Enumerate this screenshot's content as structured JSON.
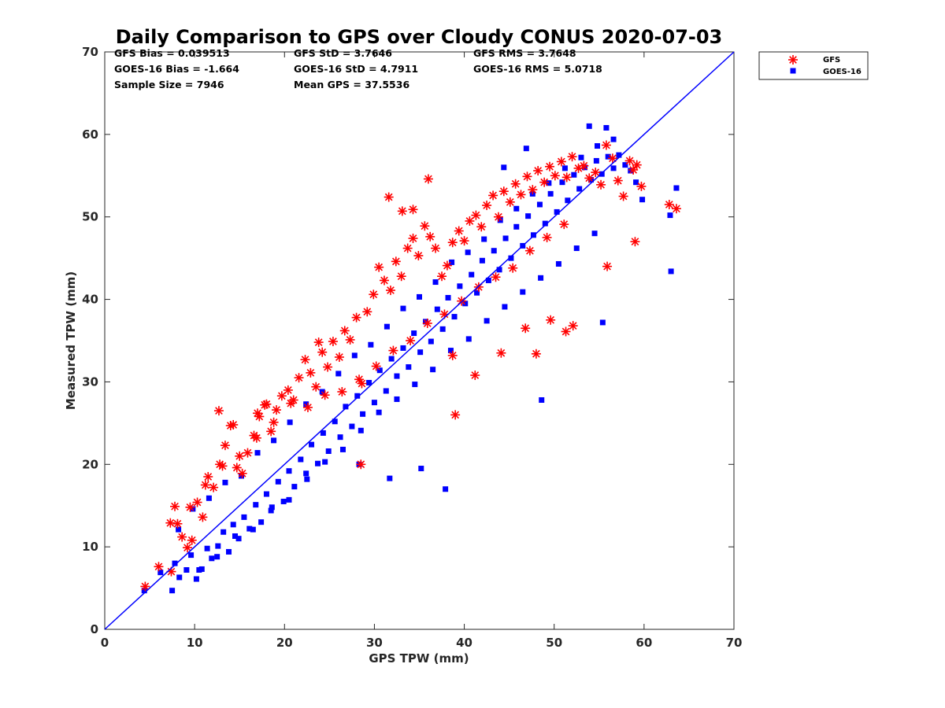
{
  "chart_data": {
    "type": "scatter",
    "title": "Daily Comparison to GPS over Cloudy CONUS 2020-07-03",
    "xlabel": "GPS TPW (mm)",
    "ylabel": "Measured TPW (mm)",
    "xlim": [
      0,
      70
    ],
    "ylim": [
      0,
      70
    ],
    "xticks": [
      "0",
      "10",
      "20",
      "30",
      "40",
      "50",
      "60",
      "70"
    ],
    "yticks": [
      "0",
      "10",
      "20",
      "30",
      "40",
      "50",
      "60",
      "70"
    ],
    "grid": false,
    "legend_position": "outside-top-right",
    "stats": [
      [
        "GFS Bias = 0.039513",
        "GFS StD = 3.7646",
        "GFS RMS = 3.7648"
      ],
      [
        "GOES-16 Bias = -1.664",
        "GOES-16 StD = 4.7911",
        "GOES-16 RMS = 5.0718"
      ],
      [
        "Sample Size = 7946",
        "Mean GPS = 37.5536",
        ""
      ]
    ],
    "reference_line": {
      "x": [
        0,
        70
      ],
      "y": [
        0,
        70
      ],
      "color": "#0000ff"
    },
    "series": [
      {
        "name": "GOES-16",
        "marker": "square",
        "color": "#0000ff",
        "x": [
          4.4,
          6.2,
          7.5,
          7.8,
          8.3,
          9.1,
          9.6,
          10.2,
          10.8,
          11.4,
          11.9,
          12.6,
          13.2,
          13.8,
          14.3,
          14.9,
          15.5,
          16.1,
          16.8,
          17.4,
          18.0,
          18.6,
          19.3,
          19.9,
          20.5,
          21.1,
          21.8,
          22.4,
          23.0,
          23.7,
          24.3,
          24.9,
          25.6,
          26.2,
          26.8,
          27.5,
          28.1,
          28.7,
          29.4,
          30.0,
          30.6,
          31.3,
          31.9,
          32.5,
          33.2,
          33.8,
          34.4,
          35.1,
          35.7,
          36.3,
          37.0,
          37.6,
          38.2,
          38.9,
          39.5,
          40.1,
          40.8,
          41.4,
          42.0,
          42.7,
          43.3,
          43.9,
          44.6,
          45.2,
          45.8,
          46.5,
          47.1,
          47.7,
          48.4,
          49.0,
          49.6,
          50.3,
          50.9,
          51.5,
          52.2,
          52.8,
          53.4,
          54.1,
          54.7,
          55.3,
          56.0,
          56.6,
          57.2,
          57.9,
          58.5,
          59.1,
          59.8,
          62.9,
          63.6,
          8.2,
          9.8,
          11.6,
          13.4,
          15.2,
          17.0,
          18.8,
          20.6,
          22.4,
          24.2,
          26.0,
          27.8,
          29.6,
          31.4,
          33.2,
          35.0,
          36.8,
          38.6,
          40.4,
          42.2,
          44.0,
          45.8,
          47.6,
          49.4,
          51.2,
          53.0,
          54.8,
          56.6,
          10.5,
          12.5,
          14.5,
          16.5,
          18.5,
          20.5,
          22.5,
          24.5,
          26.5,
          28.5,
          30.5,
          32.5,
          34.5,
          36.5,
          38.5,
          40.5,
          42.5,
          44.5,
          46.5,
          48.5,
          50.5,
          52.5,
          54.5,
          37.9,
          48.6,
          55.4,
          63.0,
          46.9,
          53.9,
          55.8,
          44.4,
          28.3,
          31.7,
          35.2
        ],
        "y": [
          4.7,
          6.9,
          4.7,
          8.0,
          6.3,
          7.2,
          9.0,
          6.1,
          7.3,
          9.8,
          8.6,
          10.1,
          11.8,
          9.4,
          12.7,
          11.0,
          13.6,
          12.2,
          15.1,
          13.0,
          16.4,
          14.8,
          17.9,
          15.5,
          19.2,
          17.3,
          20.6,
          18.9,
          22.4,
          20.1,
          23.8,
          21.6,
          25.2,
          23.3,
          27.0,
          24.6,
          28.3,
          26.1,
          29.9,
          27.5,
          31.4,
          28.9,
          32.8,
          30.7,
          34.1,
          31.8,
          35.9,
          33.6,
          37.3,
          34.9,
          38.8,
          36.4,
          40.2,
          37.9,
          41.6,
          39.5,
          43.0,
          40.8,
          44.7,
          42.3,
          45.9,
          43.6,
          47.4,
          45.0,
          48.8,
          46.5,
          50.1,
          47.8,
          51.5,
          49.2,
          52.8,
          50.6,
          54.2,
          52.0,
          55.1,
          53.4,
          56.0,
          54.5,
          56.8,
          55.2,
          57.3,
          55.9,
          57.5,
          56.3,
          55.6,
          54.2,
          52.1,
          50.2,
          53.5,
          12.1,
          14.6,
          15.9,
          17.8,
          18.6,
          21.4,
          22.9,
          25.1,
          27.3,
          28.8,
          31.0,
          33.2,
          34.5,
          36.7,
          38.9,
          40.3,
          42.1,
          44.5,
          45.7,
          47.3,
          49.6,
          51.0,
          52.8,
          54.1,
          55.9,
          57.2,
          58.6,
          59.4,
          7.2,
          8.8,
          11.3,
          12.1,
          14.4,
          15.7,
          18.2,
          20.3,
          21.8,
          24.1,
          26.3,
          27.9,
          29.7,
          31.5,
          33.8,
          35.2,
          37.4,
          39.1,
          40.9,
          42.6,
          44.3,
          46.2,
          48.0,
          17.0,
          27.8,
          37.2,
          43.4,
          58.3,
          61.0,
          60.8,
          56.0,
          20.0,
          18.3,
          19.5
        ]
      },
      {
        "name": "GFS",
        "marker": "asterisk",
        "color": "#ff0000",
        "x": [
          4.5,
          6.0,
          7.4,
          7.8,
          8.1,
          8.6,
          9.2,
          9.7,
          10.3,
          10.9,
          11.5,
          12.1,
          12.8,
          13.4,
          14.0,
          14.7,
          15.3,
          15.9,
          16.6,
          17.2,
          17.8,
          18.5,
          19.1,
          19.7,
          20.4,
          21.0,
          21.6,
          22.3,
          22.9,
          23.5,
          24.2,
          24.8,
          25.4,
          26.1,
          26.7,
          27.3,
          28.0,
          28.6,
          29.2,
          29.9,
          30.5,
          31.1,
          31.8,
          32.4,
          33.0,
          33.7,
          34.3,
          34.9,
          35.6,
          36.2,
          36.8,
          37.5,
          38.1,
          38.7,
          39.4,
          40.0,
          40.6,
          41.3,
          41.9,
          42.5,
          43.2,
          43.8,
          44.4,
          45.1,
          45.7,
          46.3,
          47.0,
          47.6,
          48.2,
          48.9,
          49.5,
          50.1,
          50.8,
          51.4,
          52.0,
          52.7,
          53.3,
          53.9,
          54.6,
          55.2,
          55.8,
          56.5,
          57.1,
          57.7,
          58.4,
          59.0,
          59.7,
          62.8,
          63.6,
          12.7,
          14.3,
          17.0,
          18.0,
          23.8,
          28.5,
          31.6,
          33.1,
          34.3,
          36.0,
          38.7,
          39.0,
          41.2,
          44.1,
          46.8,
          48.0,
          49.6,
          51.3,
          52.1,
          55.9,
          58.8,
          59.2,
          7.3,
          9.5,
          11.2,
          13.1,
          15.0,
          16.9,
          18.8,
          20.7,
          22.6,
          24.5,
          26.4,
          28.3,
          30.2,
          32.1,
          34.0,
          35.9,
          37.8,
          39.7,
          41.6,
          43.5,
          45.4,
          47.3,
          49.2,
          51.1
        ],
        "y": [
          5.2,
          7.6,
          7.0,
          14.9,
          12.8,
          11.2,
          9.9,
          10.8,
          15.4,
          13.6,
          18.5,
          17.2,
          20.0,
          22.3,
          24.7,
          19.6,
          18.9,
          21.4,
          23.5,
          25.8,
          27.2,
          24.0,
          26.6,
          28.3,
          29.0,
          27.8,
          30.5,
          32.7,
          31.1,
          29.4,
          33.6,
          31.8,
          34.9,
          33.0,
          36.2,
          35.1,
          37.8,
          29.8,
          38.5,
          40.6,
          43.9,
          42.3,
          41.1,
          44.6,
          42.8,
          46.2,
          47.4,
          45.3,
          48.9,
          47.6,
          46.2,
          42.8,
          44.1,
          46.9,
          48.3,
          47.1,
          49.5,
          50.2,
          48.8,
          51.4,
          52.6,
          50.0,
          53.1,
          51.8,
          54.0,
          52.7,
          54.9,
          53.3,
          55.6,
          54.2,
          56.1,
          55.0,
          56.7,
          54.8,
          57.3,
          55.9,
          56.2,
          54.7,
          55.4,
          53.9,
          58.7,
          57.1,
          54.4,
          52.5,
          56.8,
          47.0,
          53.7,
          51.5,
          51.0,
          26.5,
          24.8,
          26.2,
          27.3,
          34.8,
          20.0,
          52.4,
          50.7,
          50.9,
          54.6,
          33.2,
          26.0,
          30.8,
          33.5,
          36.5,
          33.4,
          37.5,
          36.1,
          36.8,
          44.0,
          55.7,
          56.3,
          12.9,
          14.8,
          17.5,
          19.8,
          21.0,
          23.2,
          25.1,
          27.4,
          26.9,
          28.4,
          28.8,
          30.3,
          31.9,
          33.8,
          35.0,
          37.1,
          38.2,
          39.8,
          41.5,
          42.7,
          43.8,
          45.9,
          47.5,
          49.1
        ]
      }
    ]
  }
}
